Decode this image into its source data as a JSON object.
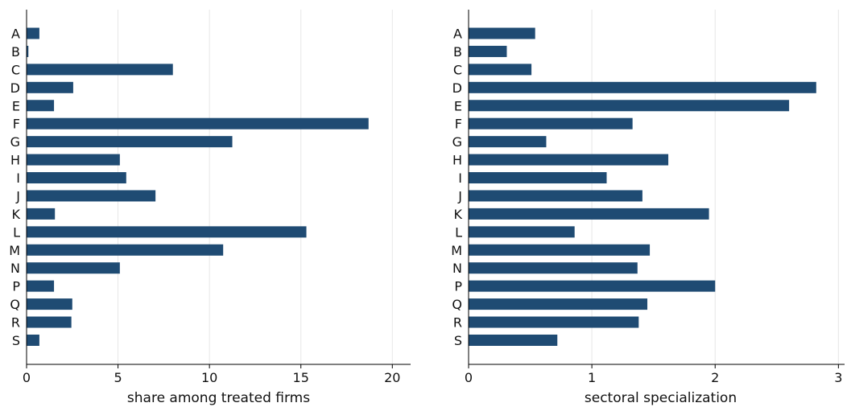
{
  "bar_color": "#1f4b73",
  "grid_color": "#e6e6e6",
  "chart_data": [
    {
      "type": "bar",
      "orientation": "horizontal",
      "categories": [
        "A",
        "B",
        "C",
        "D",
        "E",
        "F",
        "G",
        "H",
        "I",
        "J",
        "K",
        "L",
        "M",
        "N",
        "P",
        "Q",
        "R",
        "S"
      ],
      "values": [
        0.7,
        0.1,
        8.0,
        2.55,
        1.5,
        18.7,
        11.25,
        5.1,
        5.45,
        7.05,
        1.55,
        15.3,
        10.75,
        5.1,
        1.5,
        2.5,
        2.45,
        0.7
      ],
      "xlabel": "share among treated firms",
      "xlim": [
        0,
        21
      ],
      "xticks": [
        0,
        5,
        10,
        15,
        20
      ],
      "grid": "vertical"
    },
    {
      "type": "bar",
      "orientation": "horizontal",
      "categories": [
        "A",
        "B",
        "C",
        "D",
        "E",
        "F",
        "G",
        "H",
        "I",
        "J",
        "K",
        "L",
        "M",
        "N",
        "P",
        "Q",
        "R",
        "S"
      ],
      "values": [
        0.54,
        0.31,
        0.51,
        2.82,
        2.6,
        1.33,
        0.63,
        1.62,
        1.12,
        1.41,
        1.95,
        0.86,
        1.47,
        1.37,
        2.0,
        1.45,
        1.38,
        0.72
      ],
      "xlabel": "sectoral specialization",
      "xlim": [
        0,
        3.05
      ],
      "xticks": [
        0,
        1,
        2,
        3
      ],
      "grid": "vertical"
    }
  ]
}
